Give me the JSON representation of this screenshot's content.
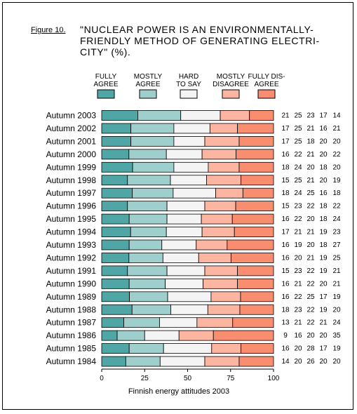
{
  "figure": {
    "label": "Figure 10.",
    "title": "\"NUCLEAR POWER IS AN ENVIRONMENTALLY-\nFRIENDLY METHOD OF GENERATING ELECTRI-\nCITY\" (%).",
    "caption": "Finnish energy attitudes 2003"
  },
  "colors": {
    "fully_agree": "#50a6a4",
    "mostly_agree": "#9fcfcd",
    "hard_to_say": "#f4f4f4",
    "mostly_disagree": "#fbb5a0",
    "fully_disagree": "#f98d70"
  },
  "chart_data": {
    "type": "bar",
    "orientation": "horizontal",
    "stacked": true,
    "categories": [
      "Autumn 2003",
      "Autumn 2002",
      "Autumn 2001",
      "Autumn 2000",
      "Autumn 1999",
      "Autumn 1998",
      "Autumn 1997",
      "Autumn 1996",
      "Autumn 1995",
      "Autumn 1994",
      "Autumn 1993",
      "Autumn 1992",
      "Autumn 1991",
      "Autumn 1990",
      "Autumn 1989",
      "Autumn 1988",
      "Autumn 1987",
      "Autumn 1986",
      "Autumn 1985",
      "Autumn 1984"
    ],
    "series": [
      {
        "name": "FULLY\nAGREE",
        "values": [
          21,
          17,
          17,
          16,
          18,
          15,
          18,
          15,
          16,
          17,
          16,
          16,
          15,
          16,
          16,
          18,
          13,
          9,
          16,
          14
        ]
      },
      {
        "name": "MOSTLY\nAGREE",
        "values": [
          25,
          25,
          25,
          22,
          24,
          25,
          24,
          23,
          22,
          21,
          19,
          20,
          23,
          21,
          22,
          23,
          21,
          16,
          20,
          20
        ]
      },
      {
        "name": "HARD\nTO SAY",
        "values": [
          23,
          21,
          18,
          21,
          20,
          21,
          25,
          22,
          20,
          21,
          20,
          21,
          22,
          22,
          25,
          22,
          22,
          20,
          28,
          26
        ]
      },
      {
        "name": "MOSTLY\nDISAGREE",
        "values": [
          17,
          16,
          20,
          20,
          18,
          20,
          16,
          18,
          18,
          19,
          18,
          19,
          19,
          20,
          17,
          19,
          21,
          20,
          17,
          20
        ]
      },
      {
        "name": "FULLY DIS-\nAGREE",
        "values": [
          14,
          21,
          20,
          22,
          20,
          19,
          18,
          22,
          24,
          23,
          27,
          25,
          21,
          21,
          19,
          20,
          24,
          35,
          19,
          20
        ]
      }
    ],
    "xlim": [
      0,
      100
    ],
    "xticks": [
      0,
      25,
      50,
      75,
      100
    ],
    "legend": "top",
    "value_labels": "right"
  }
}
